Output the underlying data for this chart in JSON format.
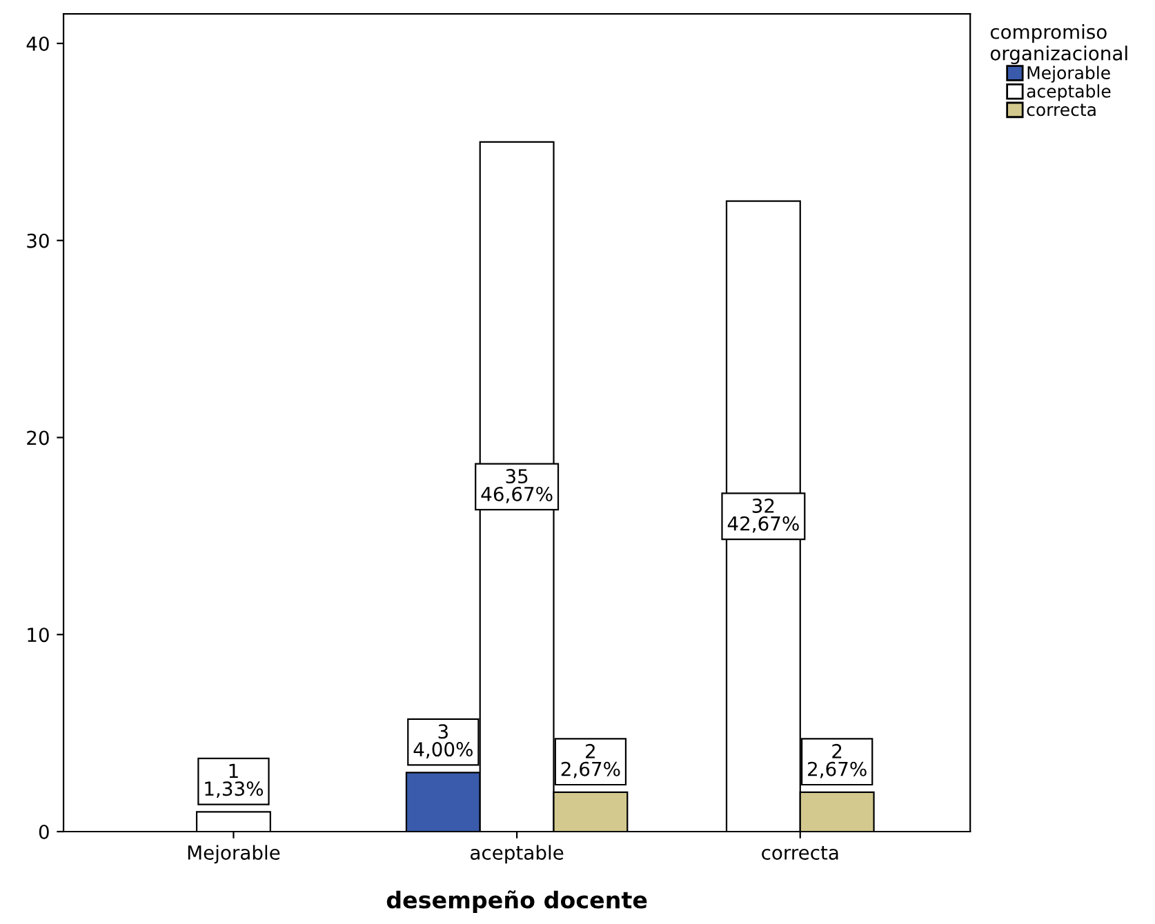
{
  "chart_data": {
    "type": "bar",
    "xlabel": "desempeño docente",
    "legend_title": "compromiso\norganizacional",
    "categories": [
      "Mejorable",
      "aceptable",
      "correcta"
    ],
    "series": [
      {
        "name": "Mejorable",
        "color": "#3a5bab",
        "values": [
          null,
          3,
          null
        ],
        "value_labels": [
          null,
          "3\n4,00%",
          null
        ]
      },
      {
        "name": "aceptable",
        "color": "#ffffff",
        "values": [
          1,
          35,
          32
        ],
        "value_labels": [
          "1\n1,33%",
          "35\n46,67%",
          "32\n42,67%"
        ]
      },
      {
        "name": "correcta",
        "color": "#d3c98e",
        "values": [
          null,
          2,
          2
        ],
        "value_labels": [
          null,
          "2\n2,67%",
          "2\n2,67%"
        ]
      }
    ],
    "ylim": [
      0,
      41.5
    ],
    "yticks": [
      0,
      10,
      20,
      30,
      40
    ],
    "grid": false,
    "legend": "top right"
  }
}
